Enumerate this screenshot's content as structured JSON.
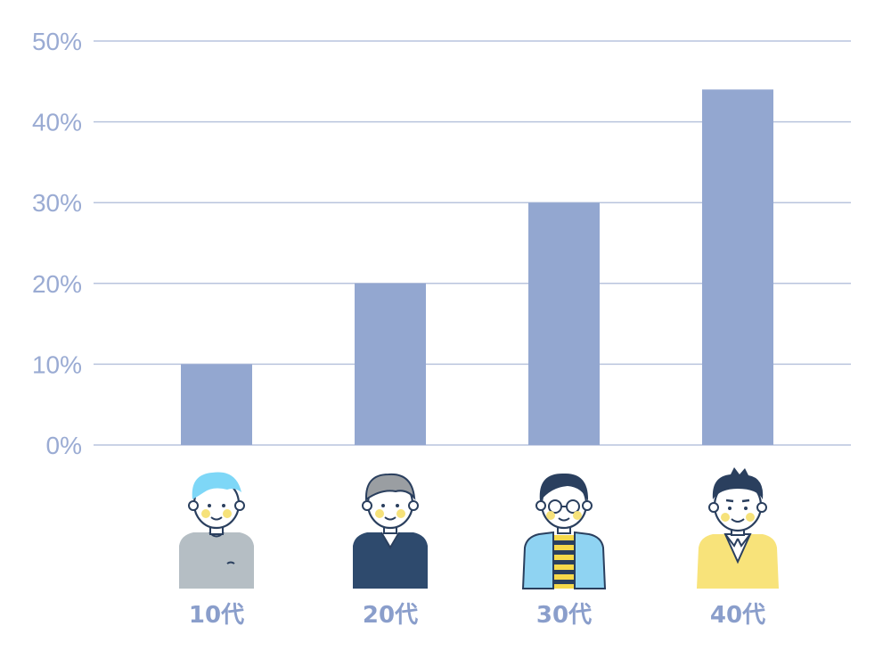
{
  "chart_data": {
    "type": "bar",
    "categories": [
      "10代",
      "20代",
      "30代",
      "40代"
    ],
    "values": [
      10,
      20,
      30,
      44
    ],
    "y_ticks": [
      "0%",
      "10%",
      "20%",
      "30%",
      "40%",
      "50%"
    ],
    "ylim": [
      0,
      50
    ],
    "grid": true,
    "title": "",
    "xlabel": "",
    "ylabel": ""
  },
  "colors": {
    "bar": "#93a7d0",
    "grid": "#b9c4dd",
    "tick_text": "#9aabd3",
    "category_text": "#8a9ecb"
  },
  "icons": [
    "teen-person-icon",
    "twenties-person-icon",
    "thirties-person-icon",
    "forties-person-icon"
  ]
}
